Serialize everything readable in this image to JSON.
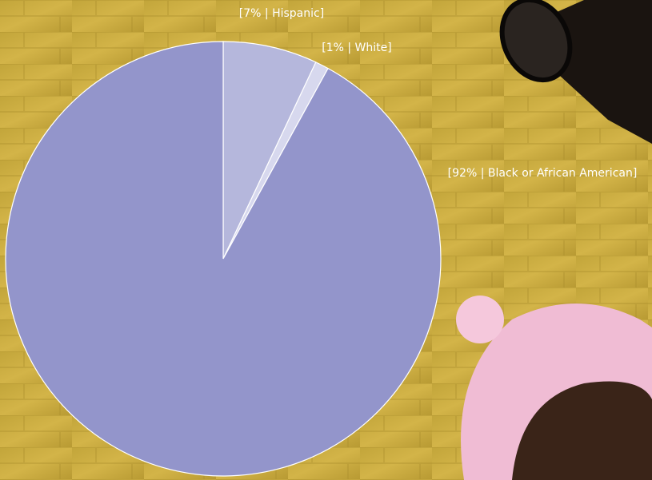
{
  "chart_data": {
    "type": "pie",
    "values": [
      7,
      1,
      92
    ],
    "value_labels": [
      "[7% | Hispanic]",
      "[1% | White]",
      "[92% | Black or African American]"
    ],
    "colors": [
      "#b5b7dc",
      "#d7d8ee",
      "#9395cb"
    ]
  }
}
